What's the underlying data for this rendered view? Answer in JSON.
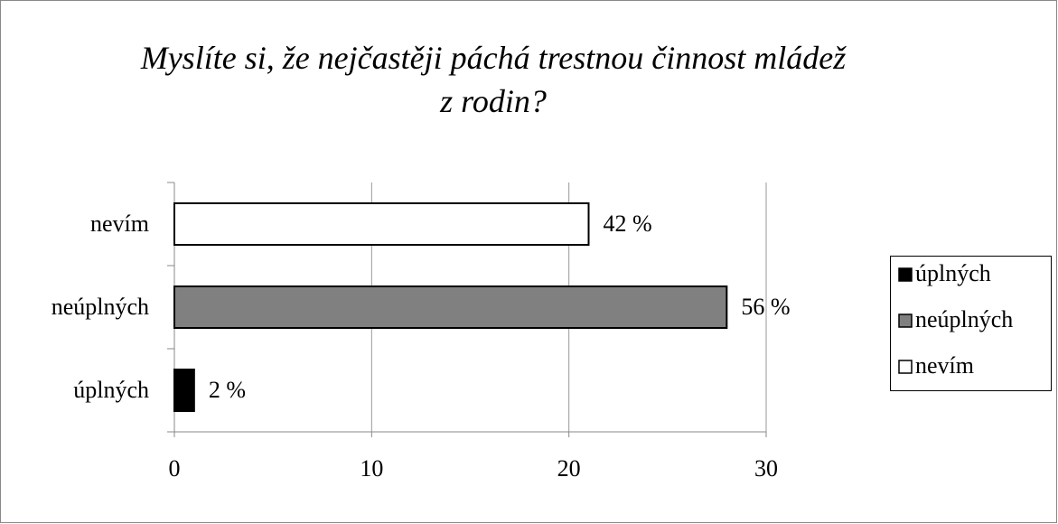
{
  "chart_data": {
    "type": "hbar",
    "title": "Myslíte si, že nejčastěji páchá trestnou činnost mládež z rodin?",
    "categories": [
      "úplných",
      "neúplných",
      "nevím"
    ],
    "values": [
      1,
      28,
      21
    ],
    "value_labels": [
      "2 %",
      "56 %",
      "42 %"
    ],
    "colors": [
      "#000000",
      "#808080",
      "#ffffff"
    ],
    "xlim": [
      0,
      30
    ],
    "xticks": [
      0,
      10,
      20,
      30
    ],
    "grid": true,
    "legend": "right"
  }
}
